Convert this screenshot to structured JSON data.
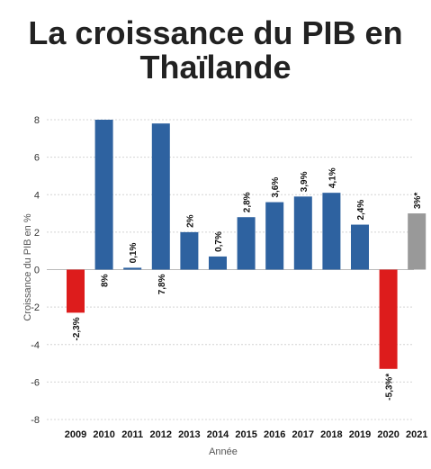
{
  "title": {
    "line1": "La croissance du PIB en",
    "line2": "Thaïlande"
  },
  "chart_data": {
    "type": "bar",
    "categories": [
      "2009",
      "2010",
      "2011",
      "2012",
      "2013",
      "2014",
      "2015",
      "2016",
      "2017",
      "2018",
      "2019",
      "2020",
      "2021"
    ],
    "values": [
      -2.3,
      8.0,
      0.1,
      7.8,
      2.0,
      0.7,
      2.8,
      3.6,
      3.9,
      4.1,
      2.4,
      -5.3,
      3.0
    ],
    "labels": [
      "-2,3%",
      "8%",
      "0,1%",
      "7,8%",
      "2%",
      "0,7%",
      "2,8%",
      "3,6%",
      "3,9%",
      "4,1%",
      "2,4%",
      "-5,3%*",
      "3%*"
    ],
    "bar_colors": [
      "#dd1c1c",
      "#2e62a0",
      "#2e62a0",
      "#2e62a0",
      "#2e62a0",
      "#2e62a0",
      "#2e62a0",
      "#2e62a0",
      "#2e62a0",
      "#2e62a0",
      "#2e62a0",
      "#dd1c1c",
      "#999999"
    ],
    "y_ticks": [
      "8",
      "6",
      "4",
      "2",
      "0",
      "-2",
      "-4",
      "-6",
      "-8"
    ],
    "xlabel": "Année",
    "ylabel": "Croissance du PIB en %",
    "ylim": [
      -8,
      8
    ],
    "grid": true
  }
}
